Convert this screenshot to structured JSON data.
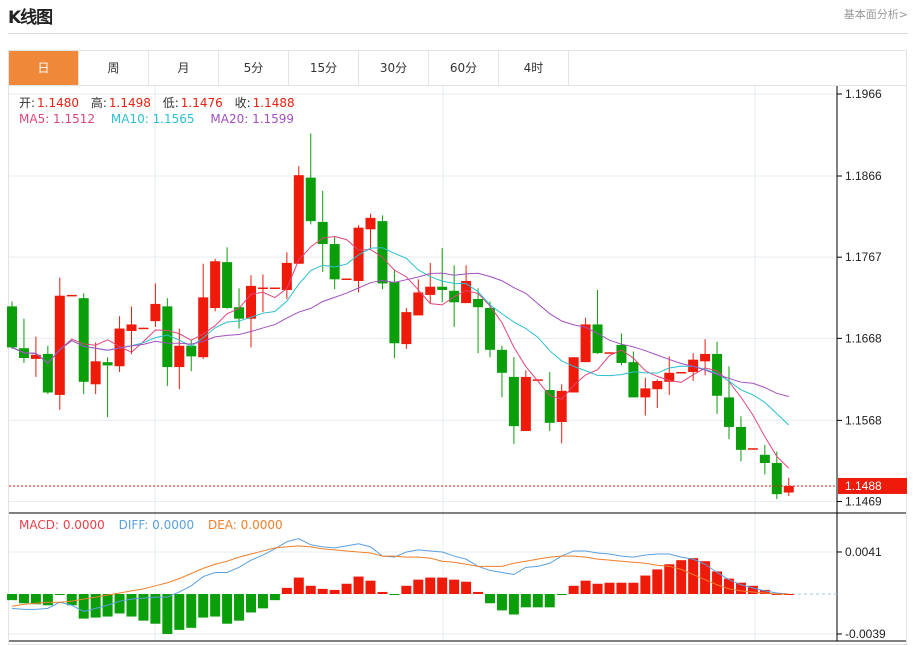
{
  "header": {
    "title": "K线图",
    "link": "基本面分析>"
  },
  "tabs": [
    {
      "label": "日",
      "active": true
    },
    {
      "label": "周"
    },
    {
      "label": "月"
    },
    {
      "label": "5分"
    },
    {
      "label": "15分"
    },
    {
      "label": "30分"
    },
    {
      "label": "60分"
    },
    {
      "label": "4时"
    }
  ],
  "ohlc_info": {
    "open_label": "开:",
    "open": "1.1480",
    "high_label": "高:",
    "high": "1.1498",
    "low_label": "低:",
    "low": "1.1476",
    "close_label": "收:",
    "close": "1.1488"
  },
  "ma_info": {
    "ma5": "MA5: 1.1512",
    "ma10": "MA10: 1.1565",
    "ma20": "MA20: 1.1599"
  },
  "macd_info": {
    "macd": "MACD: 0.0000",
    "diff": "DIFF: 0.0000",
    "dea": "DEA: 0.0000"
  },
  "colors": {
    "up": "#ee1a0a",
    "down": "#0a9e0a",
    "ma5": "#e0457b",
    "ma10": "#2bbfd0",
    "ma20": "#a350c0",
    "diff": "#5aa0e0",
    "dea": "#f07f2a",
    "accent": "#f0883a"
  },
  "chart_data": [
    {
      "type": "candlestick",
      "price_ticks": [
        "1.1966",
        "1.1866",
        "1.1767",
        "1.1668",
        "1.1568",
        "1.1469"
      ],
      "last_price": "1.1488",
      "candles_ohlc": [
        [
          1.1707,
          1.1713,
          1.1655,
          1.1657
        ],
        [
          1.1656,
          1.1692,
          1.1638,
          1.1644
        ],
        [
          1.1643,
          1.167,
          1.1621,
          1.1648
        ],
        [
          1.1649,
          1.1659,
          1.16,
          1.1602
        ],
        [
          1.1599,
          1.1742,
          1.1581,
          1.172
        ],
        [
          1.172,
          1.1721,
          1.172,
          1.1721
        ],
        [
          1.1717,
          1.1723,
          1.16,
          1.1615
        ],
        [
          1.1612,
          1.1663,
          1.16,
          1.164
        ],
        [
          1.1639,
          1.1645,
          1.1572,
          1.1635
        ],
        [
          1.1634,
          1.1695,
          1.1627,
          1.168
        ],
        [
          1.1677,
          1.1707,
          1.1649,
          1.1685
        ],
        [
          1.168,
          1.1681,
          1.168,
          1.1681
        ],
        [
          1.1689,
          1.1735,
          1.1682,
          1.171
        ],
        [
          1.1707,
          1.1717,
          1.161,
          1.1633
        ],
        [
          1.1633,
          1.168,
          1.1606,
          1.1659
        ],
        [
          1.1659,
          1.1666,
          1.1628,
          1.1646
        ],
        [
          1.1645,
          1.1759,
          1.1643,
          1.1718
        ],
        [
          1.1705,
          1.1765,
          1.1701,
          1.1762
        ],
        [
          1.1761,
          1.1779,
          1.1704,
          1.1705
        ],
        [
          1.1706,
          1.1729,
          1.168,
          1.1692
        ],
        [
          1.1692,
          1.1745,
          1.1657,
          1.1732
        ],
        [
          1.1729,
          1.1746,
          1.17,
          1.173
        ],
        [
          1.1729,
          1.173,
          1.1729,
          1.173
        ],
        [
          1.1727,
          1.1773,
          1.1716,
          1.176
        ],
        [
          1.1759,
          1.1878,
          1.1759,
          1.1867
        ],
        [
          1.1864,
          1.1918,
          1.1807,
          1.1811
        ],
        [
          1.181,
          1.1848,
          1.1749,
          1.1783
        ],
        [
          1.1783,
          1.1792,
          1.1728,
          1.174
        ],
        [
          1.174,
          1.1741,
          1.174,
          1.1741
        ],
        [
          1.1738,
          1.1806,
          1.1724,
          1.1803
        ],
        [
          1.1801,
          1.182,
          1.1778,
          1.1815
        ],
        [
          1.1811,
          1.1818,
          1.1728,
          1.1735
        ],
        [
          1.1737,
          1.1751,
          1.1644,
          1.1662
        ],
        [
          1.1661,
          1.1705,
          1.1655,
          1.17
        ],
        [
          1.1696,
          1.174,
          1.1696,
          1.1724
        ],
        [
          1.1721,
          1.176,
          1.1711,
          1.1731
        ],
        [
          1.1731,
          1.1778,
          1.1712,
          1.1727
        ],
        [
          1.1726,
          1.1757,
          1.1682,
          1.1712
        ],
        [
          1.1711,
          1.1757,
          1.1711,
          1.1738
        ],
        [
          1.1716,
          1.1729,
          1.165,
          1.1706
        ],
        [
          1.1705,
          1.1713,
          1.1645,
          1.1654
        ],
        [
          1.1654,
          1.1659,
          1.1596,
          1.1626
        ],
        [
          1.1621,
          1.1645,
          1.1539,
          1.1561
        ],
        [
          1.1555,
          1.1629,
          1.1555,
          1.1621
        ],
        [
          1.1617,
          1.1618,
          1.1617,
          1.1618
        ],
        [
          1.1605,
          1.1627,
          1.1555,
          1.1565
        ],
        [
          1.1566,
          1.1612,
          1.154,
          1.1604
        ],
        [
          1.1602,
          1.1645,
          1.1602,
          1.1645
        ],
        [
          1.1639,
          1.1693,
          1.1639,
          1.1685
        ],
        [
          1.1685,
          1.1727,
          1.1649,
          1.165
        ],
        [
          1.165,
          1.1651,
          1.165,
          1.1651
        ],
        [
          1.166,
          1.1674,
          1.1635,
          1.1638
        ],
        [
          1.1639,
          1.1652,
          1.1596,
          1.1596
        ],
        [
          1.1596,
          1.162,
          1.1574,
          1.1607
        ],
        [
          1.1606,
          1.1618,
          1.1583,
          1.1616
        ],
        [
          1.1615,
          1.1646,
          1.1599,
          1.1626
        ],
        [
          1.1626,
          1.1627,
          1.1626,
          1.1627
        ],
        [
          1.1627,
          1.165,
          1.1616,
          1.1642
        ],
        [
          1.164,
          1.1667,
          1.1623,
          1.1649
        ],
        [
          1.1649,
          1.1664,
          1.1576,
          1.1598
        ],
        [
          1.1596,
          1.1634,
          1.1545,
          1.156
        ],
        [
          1.156,
          1.1573,
          1.1518,
          1.1532
        ],
        [
          1.1533,
          1.1534,
          1.1533,
          1.1534
        ],
        [
          1.1526,
          1.1538,
          1.1502,
          1.1516
        ],
        [
          1.1516,
          1.153,
          1.1472,
          1.1478
        ],
        [
          1.148,
          1.1498,
          1.1476,
          1.1488
        ]
      ]
    },
    {
      "type": "bar+line",
      "ticks": [
        "0.0041",
        "-0.0039"
      ],
      "macd": [
        -0.0006,
        -0.0009,
        -0.001,
        -0.0011,
        -0.0001,
        -0.0011,
        -0.0024,
        -0.0023,
        -0.0022,
        -0.0019,
        -0.0022,
        -0.0026,
        -0.0029,
        -0.0039,
        -0.0035,
        -0.0033,
        -0.0023,
        -0.0022,
        -0.0029,
        -0.0026,
        -0.0018,
        -0.0014,
        -0.0006,
        0.0006,
        0.0016,
        0.0008,
        0.0005,
        0.0004,
        0.001,
        0.0017,
        0.0013,
        0.0002,
        -0.0001,
        0.0008,
        0.0014,
        0.0016,
        0.0016,
        0.0014,
        0.0012,
        0.0002,
        -0.0009,
        -0.0016,
        -0.002,
        -0.0013,
        -0.0013,
        -0.0013,
        -0.0001,
        0.0008,
        0.0013,
        0.001,
        0.0011,
        0.0011,
        0.0011,
        0.0018,
        0.0024,
        0.0029,
        0.0033,
        0.0035,
        0.0032,
        0.0022,
        0.0015,
        0.0011,
        0.0008,
        0.0004,
        0.0,
        0.0
      ],
      "diff": [
        -0.0014,
        -0.0015,
        -0.0015,
        -0.0014,
        -0.0008,
        -0.0011,
        -0.0017,
        -0.0014,
        -0.0011,
        -0.0007,
        -0.0005,
        -0.0004,
        -0.0003,
        -0.0003,
        0.0002,
        0.0008,
        0.0017,
        0.0021,
        0.0021,
        0.0026,
        0.0033,
        0.0038,
        0.0044,
        0.0051,
        0.0054,
        0.0048,
        0.0046,
        0.0045,
        0.0047,
        0.0049,
        0.0046,
        0.0037,
        0.0036,
        0.0041,
        0.0043,
        0.0042,
        0.0041,
        0.0037,
        0.0034,
        0.0027,
        0.0023,
        0.0021,
        0.0019,
        0.0026,
        0.0027,
        0.003,
        0.0037,
        0.0042,
        0.0042,
        0.004,
        0.0039,
        0.0037,
        0.0036,
        0.0038,
        0.0039,
        0.0039,
        0.0036,
        0.0034,
        0.0029,
        0.0021,
        0.0014,
        0.0009,
        0.0006,
        0.0003,
        0.0001,
        0.0
      ],
      "dea": [
        -0.0012,
        -0.001,
        -0.0009,
        -0.0008,
        -0.0008,
        -0.0007,
        -0.0005,
        -0.0003,
        -0.0001,
        0.0001,
        0.0003,
        0.0005,
        0.0008,
        0.0011,
        0.0015,
        0.002,
        0.0025,
        0.0029,
        0.0032,
        0.0036,
        0.0039,
        0.0042,
        0.0045,
        0.0046,
        0.0047,
        0.0046,
        0.0044,
        0.0043,
        0.0042,
        0.0041,
        0.004,
        0.0037,
        0.0037,
        0.0036,
        0.0036,
        0.0035,
        0.0032,
        0.0031,
        0.0029,
        0.0027,
        0.0027,
        0.0027,
        0.003,
        0.0032,
        0.0034,
        0.0036,
        0.0037,
        0.0037,
        0.0036,
        0.0034,
        0.0033,
        0.0032,
        0.0031,
        0.003,
        0.0028,
        0.0027,
        0.0024,
        0.0019,
        0.0014,
        0.0009,
        0.0005,
        0.0003,
        0.0002,
        0.0001,
        0.0,
        0.0
      ]
    }
  ]
}
